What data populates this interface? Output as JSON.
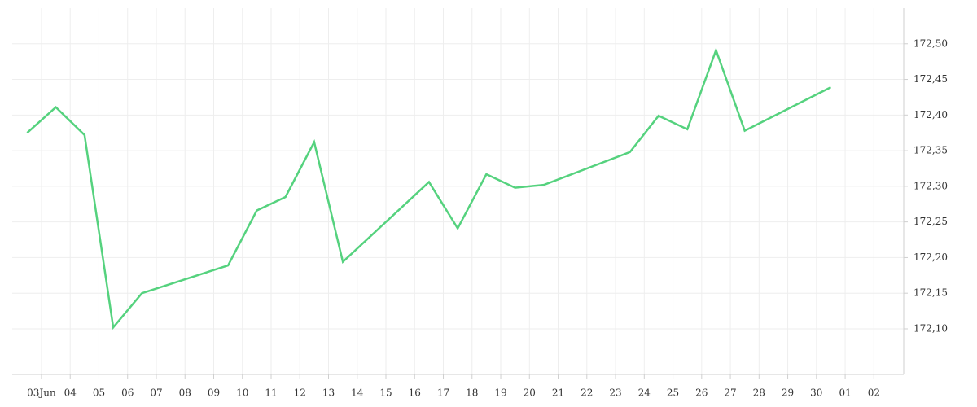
{
  "chart_data": {
    "type": "line",
    "x": [
      -0.5,
      0.5,
      1.5,
      2.5,
      3.5,
      6.5,
      7.5,
      8.5,
      9.5,
      10.5,
      13.5,
      14.5,
      15.5,
      16.5,
      17.5,
      20.5,
      21.5,
      22.5,
      23.5,
      24.5,
      27.5
    ],
    "series": [
      {
        "color": "#55d27e",
        "values": [
          172.375,
          172.411,
          172.372,
          172.102,
          172.15,
          172.189,
          172.266,
          172.285,
          172.362,
          172.194,
          172.306,
          172.241,
          172.317,
          172.298,
          172.302,
          172.348,
          172.399,
          172.38,
          172.491,
          172.378,
          172.439
        ]
      }
    ],
    "xlim": [
      -1.02,
      30.04
    ],
    "xticks": [
      {
        "value": 0,
        "label": "03Jun"
      },
      {
        "value": 1,
        "label": "04"
      },
      {
        "value": 2,
        "label": "05"
      },
      {
        "value": 3,
        "label": "06"
      },
      {
        "value": 4,
        "label": "07"
      },
      {
        "value": 5,
        "label": "08"
      },
      {
        "value": 6,
        "label": "09"
      },
      {
        "value": 7,
        "label": "10"
      },
      {
        "value": 8,
        "label": "11"
      },
      {
        "value": 9,
        "label": "12"
      },
      {
        "value": 10,
        "label": "13"
      },
      {
        "value": 11,
        "label": "14"
      },
      {
        "value": 12,
        "label": "15"
      },
      {
        "value": 13,
        "label": "16"
      },
      {
        "value": 14,
        "label": "17"
      },
      {
        "value": 15,
        "label": "18"
      },
      {
        "value": 16,
        "label": "19"
      },
      {
        "value": 17,
        "label": "20"
      },
      {
        "value": 18,
        "label": "21"
      },
      {
        "value": 19,
        "label": "22"
      },
      {
        "value": 20,
        "label": "23"
      },
      {
        "value": 21,
        "label": "24"
      },
      {
        "value": 22,
        "label": "25"
      },
      {
        "value": 23,
        "label": "26"
      },
      {
        "value": 24,
        "label": "27"
      },
      {
        "value": 25,
        "label": "28"
      },
      {
        "value": 26,
        "label": "29"
      },
      {
        "value": 27,
        "label": "30"
      },
      {
        "value": 28,
        "label": "01"
      },
      {
        "value": 29,
        "label": "02"
      }
    ],
    "ylim": [
      172.036,
      172.55
    ],
    "yticks": [
      {
        "value": 172.1,
        "label": "172,10"
      },
      {
        "value": 172.15,
        "label": "172,15"
      },
      {
        "value": 172.2,
        "label": "172,20"
      },
      {
        "value": 172.25,
        "label": "172,25"
      },
      {
        "value": 172.3,
        "label": "172,30"
      },
      {
        "value": 172.35,
        "label": "172,35"
      },
      {
        "value": 172.4,
        "label": "172,40"
      },
      {
        "value": 172.45,
        "label": "172,45"
      },
      {
        "value": 172.5,
        "label": "172,50"
      }
    ],
    "grid": true
  }
}
